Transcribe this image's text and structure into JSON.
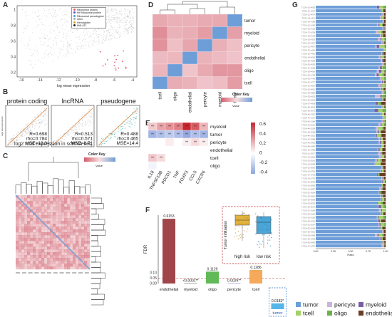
{
  "panels": {
    "A": {
      "letter": "A",
      "xlabel": "log mean expression",
      "x_ticks": [
        "-16",
        "-14",
        "-12",
        "-10",
        "-8",
        "-6",
        "-4"
      ],
      "y_ticks": [
        "0.2",
        "0.4",
        "0.6",
        "0.8",
        "1"
      ],
      "legend": [
        {
          "label": "Ribosomal protein",
          "color": "#e05a6a"
        },
        {
          "label": "Mt Ribosomal protein",
          "color": "#5b4fc4"
        },
        {
          "label": "Ribosomal pseudogene",
          "color": "#4fa0c4"
        },
        {
          "label": "other",
          "color": "#aaaaaa"
        },
        {
          "label": "Hemoglobin",
          "color": "#d4a02a"
        },
        {
          "label": "MALAT1",
          "color": "#222222"
        }
      ]
    },
    "B": {
      "letter": "B",
      "xlabel": "log2 total expression in scRNA-seq",
      "ylabel": "log2 total expression",
      "subplots": [
        {
          "title": "protein coding",
          "stats": [
            "R=0.698",
            "rho=0.784",
            "MSE=13.3"
          ]
        },
        {
          "title": "lncRNA",
          "stats": [
            "R=0.513",
            "rho=0.571",
            "MSE=8.71"
          ]
        },
        {
          "title": "pseudogene",
          "stats": [
            "R=0.488",
            "rho=0.465",
            "MSE=14.4"
          ]
        }
      ]
    },
    "C": {
      "letter": "C",
      "color_key_title": "Color Key",
      "color_key_axis": "Value"
    },
    "D": {
      "letter": "D",
      "rows": [
        "tumor",
        "myeloid",
        "pericyte",
        "endothelial",
        "oligo",
        "tcell"
      ],
      "cols": [
        "tcell",
        "oligo",
        "endothelial",
        "pericyte",
        "myeloid",
        "tumor"
      ],
      "color_key_title": "Color Key",
      "color_key_axis": "Value"
    },
    "E": {
      "letter": "E",
      "rows": [
        "myeloid",
        "tumor",
        "pericyte",
        "endothelial",
        "tcell",
        "oligo"
      ],
      "cols": [
        "IL18",
        "TNFSF13B",
        "PDCD1",
        "TNF",
        "FOXP3",
        "CCL5",
        "CXCR6"
      ],
      "cells": [
        [
          0.15,
          0.25,
          0.3,
          0.35,
          0.6,
          0.45,
          0.2
        ],
        [
          -0.35,
          -0.3,
          -0.25,
          -0.3,
          -0.4,
          -0.3,
          -0.35
        ],
        [
          0.0,
          0.0,
          0.05,
          0.0,
          0.05,
          0.1,
          0.05
        ],
        [
          0.0,
          0.0,
          0.0,
          0.0,
          0.0,
          0.0,
          0.0
        ],
        [
          0.15,
          0.1,
          0.0,
          0.0,
          0.0,
          0.0,
          0.0
        ],
        [
          -0.05,
          0.0,
          0.0,
          0.0,
          0.0,
          0.0,
          0.0
        ]
      ],
      "stars": [
        [
          "**",
          "**",
          "**",
          "**",
          "**",
          "**",
          "**"
        ],
        [
          "**",
          "**",
          "**",
          "**",
          "**",
          "**",
          "**"
        ],
        [
          "",
          "",
          "",
          "",
          "**",
          "**",
          "**"
        ],
        [
          "",
          "",
          "",
          "",
          "",
          "",
          ""
        ],
        [
          "**",
          "**",
          "",
          "",
          "",
          "",
          ""
        ],
        [
          "",
          "",
          "",
          "",
          "",
          "",
          ""
        ]
      ],
      "scale_ticks": [
        "0.6",
        "0.4",
        "0.2",
        "0",
        "-0.2",
        "-0.4"
      ]
    },
    "F": {
      "letter": "F",
      "ylabel": "FDR",
      "y_ticks": [
        "0.00",
        "0.05",
        "0.10"
      ],
      "inset_ylabel": "Tumor infiltration",
      "inset_groups": [
        "high risk",
        "low risk"
      ]
    },
    "G": {
      "letter": "G",
      "xlabel": "Ratio",
      "x_ticks": [
        "0.00",
        "0.25",
        "0.50",
        "0.75",
        "1.00"
      ],
      "legend": [
        {
          "label": "tumor",
          "color": "#6e9ed8"
        },
        {
          "label": "pericyte",
          "color": "#c9b4dc"
        },
        {
          "label": "myeloid",
          "color": "#7b5ea7"
        },
        {
          "label": "tcell",
          "color": "#a6cf6a"
        },
        {
          "label": "oligo",
          "color": "#6cb24a"
        },
        {
          "label": "endothelial",
          "color": "#6a3d24"
        }
      ]
    }
  },
  "chart_data": [
    {
      "type": "bar",
      "panel": "F",
      "title": "",
      "xlabel": "",
      "ylabel": "FDR",
      "categories": [
        "endothelial",
        "myeloid",
        "oligo",
        "pericyte",
        "tcell",
        "tumor"
      ],
      "values": [
        0.6153,
        0.0001,
        0.1129,
        0.0029,
        0.1286,
        0.0183
      ],
      "value_labels": [
        "0.6153",
        "<0.0001**",
        "0.1129",
        "0.0029**",
        "0.1286",
        "0.0183*"
      ],
      "colors": [
        "#a0464b",
        "#555555",
        "#62b957",
        "#8a6cc4",
        "#f5a95a",
        "#55b4e8"
      ],
      "threshold": 0.05
    }
  ]
}
